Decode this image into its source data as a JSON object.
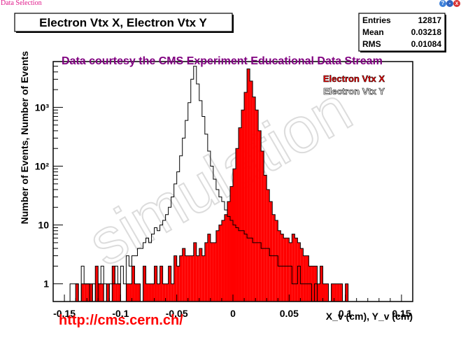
{
  "window": {
    "title": "Data Selection",
    "help_glyph": "?",
    "min_glyph": "-",
    "close_glyph": "x"
  },
  "chart_data": {
    "type": "bar",
    "title": "Electron Vtx X, Electron Vtx Y",
    "xlabel": "X_v (cm), Y_v (cm)",
    "ylabel": "Number of Events, Number of Events",
    "xlim": [
      -0.16,
      0.16
    ],
    "ylim": [
      0.5,
      6000
    ],
    "yscale": "log",
    "grid": false,
    "legend_position": "top-right",
    "courtesy": "Data courtesy the CMS Experiment Educational Data Stream",
    "url": "http://cms.cern.ch/",
    "watermark": "simulation",
    "stats": {
      "entries_label": "Entries",
      "entries": "12817",
      "mean_label": "Mean",
      "mean": "0.03218",
      "rms_label": "RMS",
      "rms": "0.01084"
    },
    "x_ticks": [
      -0.15,
      -0.1,
      -0.05,
      0,
      0.05,
      0.1,
      0.15
    ],
    "x_tick_labels": [
      "-0.15",
      "-0.1",
      "-0.05",
      "0",
      "0.05",
      "0.1",
      "0.15"
    ],
    "y_ticks": [
      1,
      10,
      100,
      1000
    ],
    "y_tick_labels": [
      "1",
      "10",
      "10²",
      "10³"
    ],
    "bin_width": 0.0025,
    "series": [
      {
        "name": "Electron Vtx X",
        "style": "filled",
        "color": "#ff0000",
        "x_start": -0.16,
        "values": [
          0,
          0,
          0,
          0,
          0,
          0,
          0,
          0,
          1,
          0,
          1,
          1,
          1,
          1,
          0,
          2,
          1,
          1,
          0,
          1,
          0,
          2,
          1,
          1,
          0,
          0,
          1,
          1,
          2,
          1,
          1,
          0,
          2,
          1,
          1,
          1,
          2,
          1,
          2,
          1,
          1,
          2,
          1,
          3,
          2,
          3,
          4,
          3,
          3,
          3,
          5,
          3,
          4,
          3,
          5,
          7,
          5,
          5,
          8,
          10,
          12,
          15,
          25,
          45,
          90,
          200,
          450,
          900,
          1800,
          4500,
          2800,
          1500,
          900,
          400,
          180,
          70,
          40,
          25,
          15,
          12,
          8,
          7,
          6,
          6,
          5,
          7,
          6,
          5,
          4,
          3,
          3,
          2,
          2,
          2,
          1,
          2,
          1,
          1,
          0,
          1,
          1,
          1,
          1,
          0,
          1,
          0,
          0,
          0,
          0,
          0,
          0,
          0,
          0,
          0,
          0,
          0,
          0,
          0,
          0,
          0,
          0,
          0,
          0,
          0,
          0,
          0,
          0,
          0
        ]
      },
      {
        "name": "Electron Vtx Y",
        "style": "outline",
        "color": "#000000",
        "x_start": -0.16,
        "values": [
          0,
          0,
          0,
          0,
          0,
          0,
          1,
          1,
          1,
          0,
          2,
          1,
          1,
          0,
          1,
          0,
          1,
          2,
          1,
          0,
          1,
          1,
          2,
          1,
          2,
          1,
          3,
          2,
          3,
          3,
          4,
          4,
          5,
          6,
          5,
          7,
          9,
          8,
          10,
          12,
          15,
          20,
          30,
          50,
          80,
          150,
          300,
          600,
          1200,
          3000,
          5000,
          2500,
          1300,
          700,
          350,
          180,
          100,
          60,
          40,
          30,
          25,
          18,
          14,
          12,
          10,
          9,
          8,
          8,
          7,
          6,
          6,
          5,
          5,
          5,
          4,
          4,
          4,
          3,
          3,
          3,
          2,
          2,
          2,
          2,
          2,
          1,
          1,
          2,
          1,
          1,
          1,
          1,
          0,
          1,
          0,
          0,
          0,
          0,
          0,
          0,
          0,
          0,
          0,
          0,
          0,
          0,
          0,
          0,
          0,
          0,
          0,
          0,
          0,
          0,
          0,
          0,
          0,
          0,
          0,
          0,
          0,
          0,
          0,
          0,
          0,
          0,
          0,
          0
        ]
      }
    ]
  }
}
